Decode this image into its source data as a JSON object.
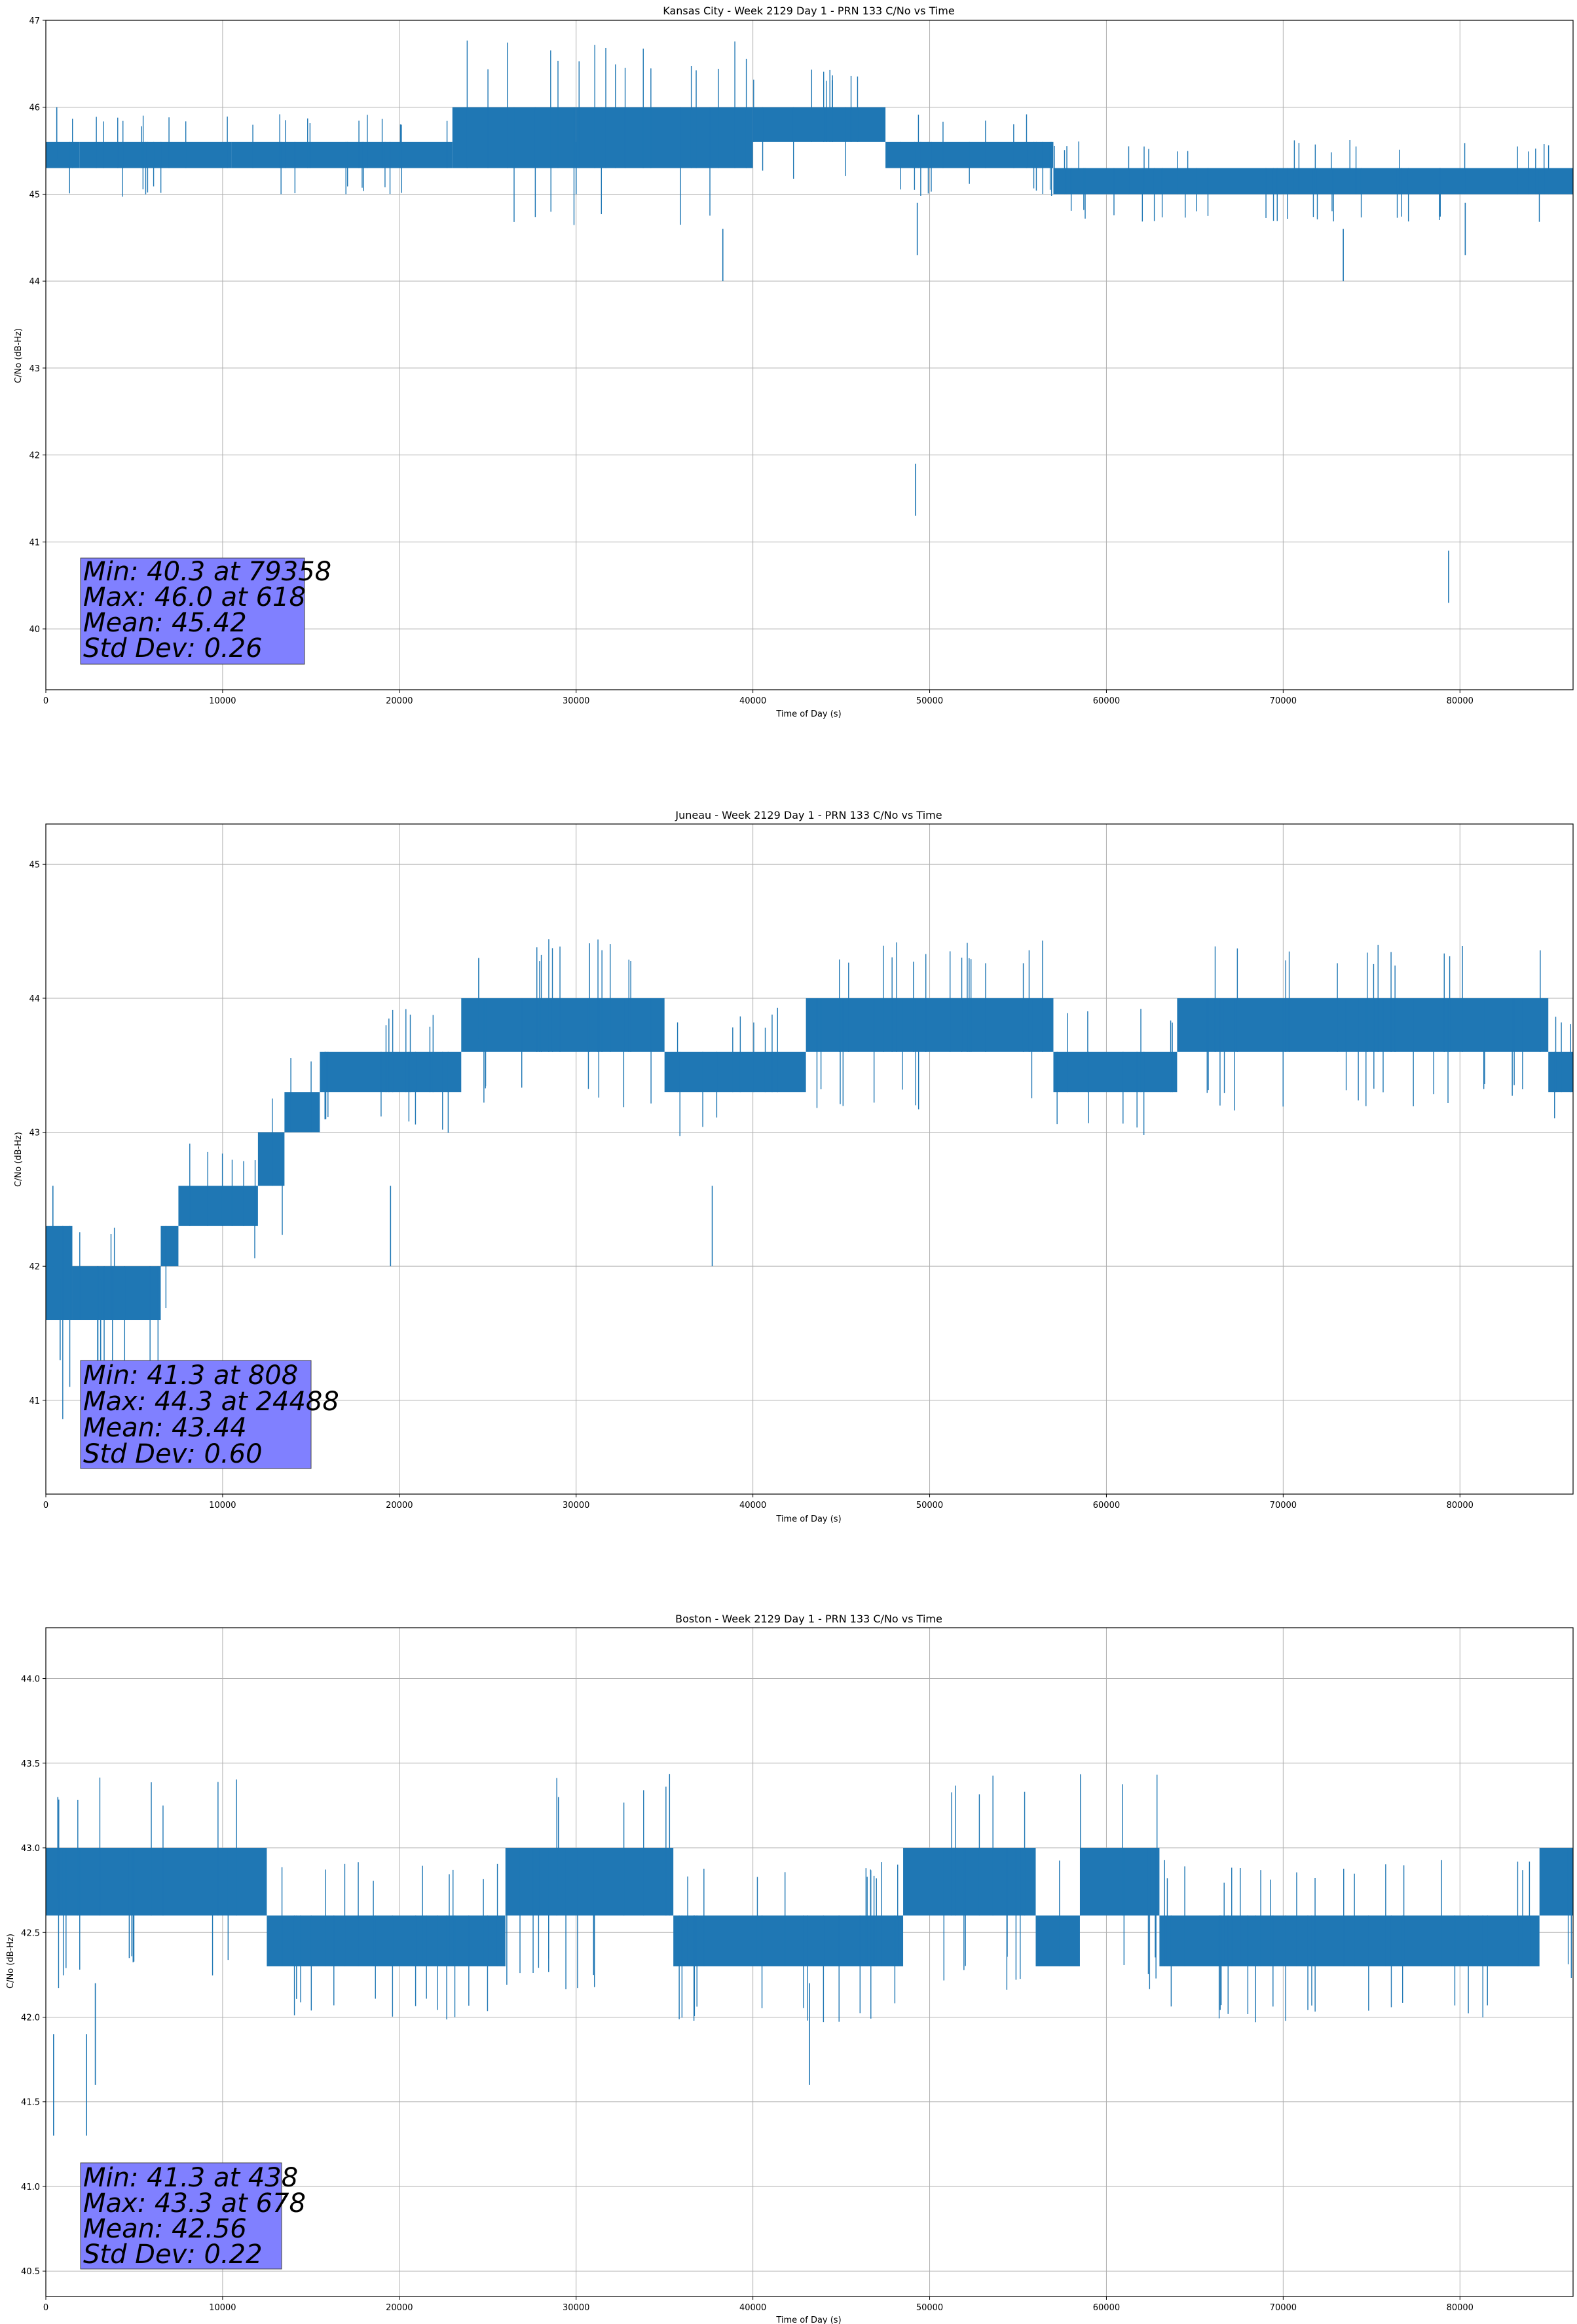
{
  "figure": {
    "series_color": "#1f77b4",
    "statbox_color": "#8080ff"
  },
  "chart_data": [
    {
      "type": "line",
      "title": "Kansas City - Week 2129 Day 1 - PRN 133 C/No vs Time",
      "xlabel": "Time of Day (s)",
      "ylabel": "C/No (dB-Hz)",
      "xlim": [
        0,
        86400
      ],
      "ylim": [
        39.3,
        47
      ],
      "xticks": [
        0,
        10000,
        20000,
        30000,
        40000,
        50000,
        60000,
        70000,
        80000
      ],
      "yticks": [
        40,
        41,
        42,
        43,
        44,
        45,
        46,
        47
      ],
      "ytick_labels": [
        "40",
        "41",
        "42",
        "43",
        "44",
        "45",
        "46",
        "47"
      ],
      "grid": true,
      "band_segments": [
        {
          "x_start": 0,
          "x_end": 1900,
          "low": 45.3,
          "high": 45.6
        },
        {
          "x_start": 1900,
          "x_end": 10500,
          "low": 45.3,
          "high": 45.6
        },
        {
          "x_start": 10500,
          "x_end": 23000,
          "low": 45.3,
          "high": 45.6
        },
        {
          "x_start": 23000,
          "x_end": 30000,
          "low": 45.3,
          "high": 46.0
        },
        {
          "x_start": 30000,
          "x_end": 40000,
          "low": 45.3,
          "high": 46.0
        },
        {
          "x_start": 40000,
          "x_end": 47500,
          "low": 45.6,
          "high": 46.0
        },
        {
          "x_start": 47500,
          "x_end": 57000,
          "low": 45.3,
          "high": 45.6
        },
        {
          "x_start": 57000,
          "x_end": 86400,
          "low": 45.0,
          "high": 45.3
        }
      ],
      "spikes": [
        {
          "x": 618,
          "y": 46.0
        },
        {
          "x": 30000,
          "y": 45.0
        },
        {
          "x": 38300,
          "y": 44.0
        },
        {
          "x": 49200,
          "y": 41.3
        },
        {
          "x": 49300,
          "y": 44.3
        },
        {
          "x": 73400,
          "y": 44.0
        },
        {
          "x": 79358,
          "y": 40.3
        },
        {
          "x": 80300,
          "y": 44.3
        }
      ],
      "stats": {
        "min": "Min: 40.3 at 79358",
        "max": "Max: 46.0 at 618",
        "mean": "Mean: 45.42",
        "std": "Std Dev: 0.26"
      }
    },
    {
      "type": "line",
      "title": "Juneau - Week 2129 Day 1 - PRN 133 C/No vs Time",
      "xlabel": "Time of Day (s)",
      "ylabel": "C/No (dB-Hz)",
      "xlim": [
        0,
        86400
      ],
      "ylim": [
        40.3,
        45.3
      ],
      "xticks": [
        0,
        10000,
        20000,
        30000,
        40000,
        50000,
        60000,
        70000,
        80000
      ],
      "yticks": [
        41,
        42,
        43,
        44,
        45
      ],
      "ytick_labels": [
        "41",
        "42",
        "43",
        "44",
        "45"
      ],
      "grid": true,
      "band_segments": [
        {
          "x_start": 0,
          "x_end": 1500,
          "low": 41.6,
          "high": 42.3
        },
        {
          "x_start": 1500,
          "x_end": 6500,
          "low": 41.6,
          "high": 42.0
        },
        {
          "x_start": 6500,
          "x_end": 7500,
          "low": 42.0,
          "high": 42.3
        },
        {
          "x_start": 7500,
          "x_end": 12000,
          "low": 42.3,
          "high": 42.6
        },
        {
          "x_start": 12000,
          "x_end": 13500,
          "low": 42.6,
          "high": 43.0
        },
        {
          "x_start": 13500,
          "x_end": 15500,
          "low": 43.0,
          "high": 43.3
        },
        {
          "x_start": 15500,
          "x_end": 23500,
          "low": 43.3,
          "high": 43.6
        },
        {
          "x_start": 23500,
          "x_end": 35000,
          "low": 43.6,
          "high": 44.0
        },
        {
          "x_start": 35000,
          "x_end": 43000,
          "low": 43.3,
          "high": 43.6
        },
        {
          "x_start": 43000,
          "x_end": 57000,
          "low": 43.6,
          "high": 44.0
        },
        {
          "x_start": 57000,
          "x_end": 64000,
          "low": 43.3,
          "high": 43.6
        },
        {
          "x_start": 64000,
          "x_end": 85000,
          "low": 43.6,
          "high": 44.0
        },
        {
          "x_start": 85000,
          "x_end": 86400,
          "low": 43.3,
          "high": 43.6
        }
      ],
      "spikes": [
        {
          "x": 400,
          "y": 42.6
        },
        {
          "x": 808,
          "y": 41.3
        },
        {
          "x": 3100,
          "y": 41.3
        },
        {
          "x": 19500,
          "y": 42.6
        },
        {
          "x": 24488,
          "y": 44.3
        },
        {
          "x": 37700,
          "y": 42.6
        }
      ],
      "stats": {
        "min": "Min: 41.3 at 808",
        "max": "Max: 44.3 at 24488",
        "mean": "Mean: 43.44",
        "std": "Std Dev: 0.60"
      }
    },
    {
      "type": "line",
      "title": "Boston - Week 2129 Day 1 - PRN 133 C/No vs Time",
      "xlabel": "Time of Day (s)",
      "ylabel": "C/No (dB-Hz)",
      "xlim": [
        0,
        86400
      ],
      "ylim": [
        40.35,
        44.3
      ],
      "xticks": [
        0,
        10000,
        20000,
        30000,
        40000,
        50000,
        60000,
        70000,
        80000
      ],
      "yticks": [
        40.5,
        41.0,
        41.5,
        42.0,
        42.5,
        43.0,
        43.5,
        44.0
      ],
      "ytick_labels": [
        "40.5",
        "41.0",
        "41.5",
        "42.0",
        "42.5",
        "43.0",
        "43.5",
        "44.0"
      ],
      "grid": true,
      "band_segments": [
        {
          "x_start": 0,
          "x_end": 12500,
          "low": 42.6,
          "high": 43.0
        },
        {
          "x_start": 12500,
          "x_end": 26000,
          "low": 42.3,
          "high": 42.6
        },
        {
          "x_start": 26000,
          "x_end": 35500,
          "low": 42.6,
          "high": 43.0
        },
        {
          "x_start": 35500,
          "x_end": 48500,
          "low": 42.3,
          "high": 42.6
        },
        {
          "x_start": 48500,
          "x_end": 56000,
          "low": 42.6,
          "high": 43.0
        },
        {
          "x_start": 56000,
          "x_end": 58500,
          "low": 42.3,
          "high": 42.6
        },
        {
          "x_start": 58500,
          "x_end": 63000,
          "low": 42.6,
          "high": 43.0
        },
        {
          "x_start": 63000,
          "x_end": 84500,
          "low": 42.3,
          "high": 42.6
        },
        {
          "x_start": 84500,
          "x_end": 86400,
          "low": 42.6,
          "high": 43.0
        }
      ],
      "spikes": [
        {
          "x": 438,
          "y": 41.3
        },
        {
          "x": 678,
          "y": 43.3
        },
        {
          "x": 2300,
          "y": 41.3
        },
        {
          "x": 2800,
          "y": 41.6
        },
        {
          "x": 29000,
          "y": 43.3
        },
        {
          "x": 43200,
          "y": 41.6
        }
      ],
      "stats": {
        "min": "Min: 41.3 at 438",
        "max": "Max: 43.3 at 678",
        "mean": "Mean: 42.56",
        "std": "Std Dev: 0.22"
      }
    }
  ]
}
